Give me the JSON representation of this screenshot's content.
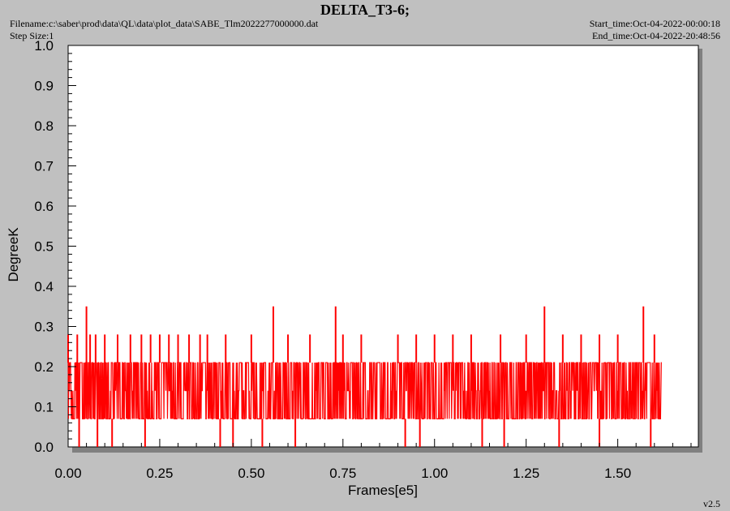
{
  "header": {
    "title": "DELTA_T3-6;",
    "filename": "Filename:c:\\saber\\prod\\data\\QL\\data\\plot_data\\SABE_Tlm2022277000000.dat",
    "step_size": "Step Size:1",
    "start_time": "Start_time:Oct-04-2022-00:00:18",
    "end_time": "End_time:Oct-04-2022-20:48:56",
    "version": "v2.5"
  },
  "colors": {
    "background": "#c0c0c0",
    "plot_area": "#ffffff",
    "series": "#ff0000"
  },
  "chart_data": {
    "type": "line",
    "xlabel": "Frames[e5]",
    "ylabel": "DegreeK",
    "xlim": [
      0.0,
      1.72
    ],
    "ylim": [
      0.0,
      1.0
    ],
    "x_ticks": [
      0.0,
      0.25,
      0.5,
      0.75,
      1.0,
      1.25,
      1.5
    ],
    "x_tick_labels": [
      "0.00",
      "0.25",
      "0.50",
      "0.75",
      "1.00",
      "1.25",
      "1.50"
    ],
    "y_ticks": [
      0.0,
      0.1,
      0.2,
      0.3,
      0.4,
      0.5,
      0.6,
      0.7,
      0.8,
      0.9,
      1.0
    ],
    "y_tick_labels": [
      "0.0",
      "0.1",
      "0.2",
      "0.3",
      "0.4",
      "0.5",
      "0.6",
      "0.7",
      "0.8",
      "0.9",
      "1.0"
    ],
    "grid": false,
    "series": [
      {
        "x_range": [
          0.0,
          1.62
        ],
        "levels": [
          0.0,
          0.07,
          0.14,
          0.21,
          0.28,
          0.35
        ],
        "dominant_band": [
          0.07,
          0.21
        ],
        "spikes_high": [
          [
            0.0,
            0.28
          ],
          [
            0.025,
            0.28
          ],
          [
            0.05,
            0.35
          ],
          [
            0.06,
            0.28
          ],
          [
            0.075,
            0.28
          ],
          [
            0.1,
            0.28
          ],
          [
            0.135,
            0.28
          ],
          [
            0.17,
            0.28
          ],
          [
            0.2,
            0.28
          ],
          [
            0.225,
            0.28
          ],
          [
            0.25,
            0.28
          ],
          [
            0.275,
            0.28
          ],
          [
            0.3,
            0.28
          ],
          [
            0.33,
            0.28
          ],
          [
            0.36,
            0.28
          ],
          [
            0.38,
            0.28
          ],
          [
            0.43,
            0.28
          ],
          [
            0.5,
            0.28
          ],
          [
            0.56,
            0.35
          ],
          [
            0.6,
            0.28
          ],
          [
            0.66,
            0.28
          ],
          [
            0.73,
            0.35
          ],
          [
            0.75,
            0.28
          ],
          [
            0.8,
            0.28
          ],
          [
            0.9,
            0.28
          ],
          [
            0.95,
            0.28
          ],
          [
            1.0,
            0.28
          ],
          [
            1.05,
            0.28
          ],
          [
            1.1,
            0.28
          ],
          [
            1.18,
            0.28
          ],
          [
            1.25,
            0.28
          ],
          [
            1.3,
            0.35
          ],
          [
            1.35,
            0.28
          ],
          [
            1.4,
            0.28
          ],
          [
            1.45,
            0.28
          ],
          [
            1.5,
            0.28
          ],
          [
            1.57,
            0.35
          ],
          [
            1.6,
            0.28
          ]
        ],
        "spikes_low": [
          [
            0.03,
            0.0
          ],
          [
            0.08,
            0.0
          ],
          [
            0.12,
            0.0
          ],
          [
            0.21,
            0.0
          ],
          [
            0.415,
            0.0
          ],
          [
            0.45,
            0.0
          ],
          [
            0.53,
            0.0
          ],
          [
            0.62,
            0.0
          ],
          [
            0.92,
            0.0
          ],
          [
            0.96,
            0.0
          ],
          [
            1.13,
            0.0
          ],
          [
            1.19,
            0.0
          ],
          [
            1.34,
            0.0
          ],
          [
            1.45,
            0.0
          ],
          [
            1.59,
            0.0
          ]
        ]
      }
    ]
  }
}
